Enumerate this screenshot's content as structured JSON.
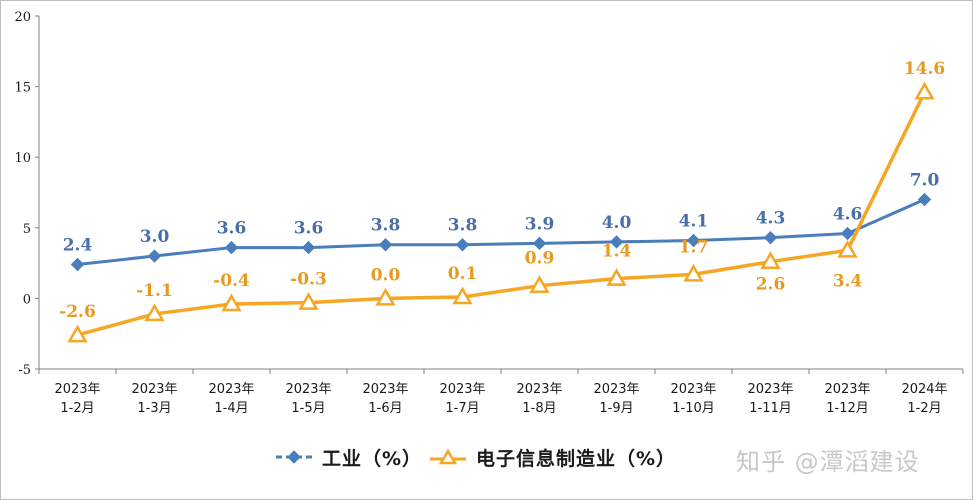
{
  "chart_data": {
    "type": "line",
    "categories": [
      [
        "2023年",
        "1-2月"
      ],
      [
        "2023年",
        "1-3月"
      ],
      [
        "2023年",
        "1-4月"
      ],
      [
        "2023年",
        "1-5月"
      ],
      [
        "2023年",
        "1-6月"
      ],
      [
        "2023年",
        "1-7月"
      ],
      [
        "2023年",
        "1-8月"
      ],
      [
        "2023年",
        "1-9月"
      ],
      [
        "2023年",
        "1-10月"
      ],
      [
        "2023年",
        "1-11月"
      ],
      [
        "2023年",
        "1-12月"
      ],
      [
        "2024年",
        "1-2月"
      ]
    ],
    "series": [
      {
        "name": "工业（%）",
        "color": "#4a7ebb",
        "marker": "diamond",
        "values": [
          2.4,
          3.0,
          3.6,
          3.6,
          3.8,
          3.8,
          3.9,
          4.0,
          4.1,
          4.3,
          4.6,
          7.0
        ],
        "labels": [
          "2.4",
          "3.0",
          "3.6",
          "3.6",
          "3.8",
          "3.8",
          "3.9",
          "4.0",
          "4.1",
          "4.3",
          "4.6",
          "7.0"
        ]
      },
      {
        "name": "电子信息制造业（%）",
        "color": "#f5a623",
        "marker": "triangle",
        "values": [
          -2.6,
          -1.1,
          -0.4,
          -0.3,
          0.0,
          0.1,
          0.9,
          1.4,
          1.7,
          2.6,
          3.4,
          14.6
        ],
        "labels": [
          "-2.6",
          "-1.1",
          "-0.4",
          "-0.3",
          "0.0",
          "0.1",
          "0.9",
          "1.4",
          "1.7",
          "2.6",
          "3.4",
          "14.6"
        ]
      }
    ],
    "ylim": [
      -5,
      20
    ],
    "yticks": [
      -5,
      0,
      5,
      10,
      15,
      20
    ],
    "grid": false,
    "legend_position": "bottom"
  },
  "watermark": "知乎 @潭滔建设"
}
